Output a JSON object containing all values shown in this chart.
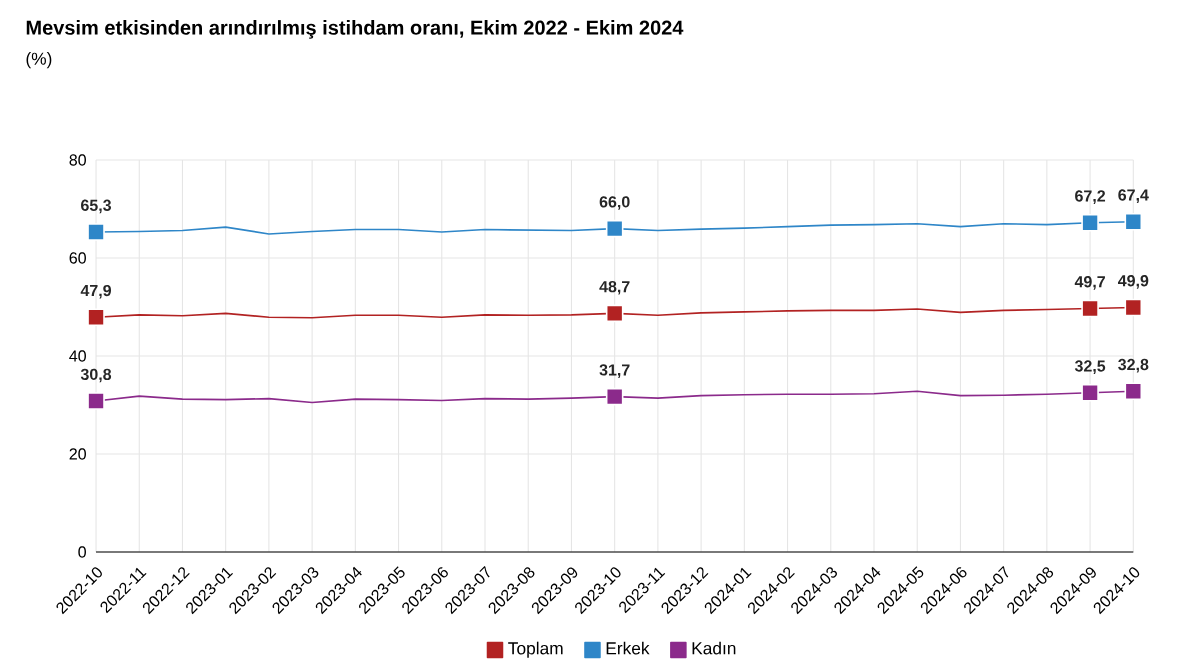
{
  "chart_data": {
    "type": "line",
    "title": "Mevsim etkisinden arındırılmış istihdam oranı, Ekim 2022 - Ekim 2024",
    "ylabel": "(%)",
    "categories": [
      "2022-10",
      "2022-11",
      "2022-12",
      "2023-01",
      "2023-02",
      "2023-03",
      "2023-04",
      "2023-05",
      "2023-06",
      "2023-07",
      "2023-08",
      "2023-09",
      "2023-10",
      "2023-11",
      "2023-12",
      "2024-01",
      "2024-02",
      "2024-03",
      "2024-04",
      "2024-05",
      "2024-06",
      "2024-07",
      "2024-08",
      "2024-09",
      "2024-10"
    ],
    "series": [
      {
        "name": "Toplam",
        "color": "#b22222",
        "values": [
          47.9,
          48.4,
          48.2,
          48.7,
          47.9,
          47.8,
          48.3,
          48.3,
          47.9,
          48.4,
          48.3,
          48.4,
          48.7,
          48.3,
          48.8,
          49.0,
          49.2,
          49.3,
          49.3,
          49.6,
          48.9,
          49.3,
          49.5,
          49.7,
          49.9
        ],
        "value_labels": [
          "47,9",
          null,
          null,
          null,
          null,
          null,
          null,
          null,
          null,
          null,
          null,
          null,
          "48,7",
          null,
          null,
          null,
          null,
          null,
          null,
          null,
          null,
          null,
          null,
          "49,7",
          "49,9"
        ]
      },
      {
        "name": "Erkek",
        "color": "#2e86c8",
        "values": [
          65.3,
          65.4,
          65.6,
          66.3,
          64.9,
          65.4,
          65.8,
          65.8,
          65.3,
          65.8,
          65.7,
          65.6,
          66.0,
          65.6,
          65.9,
          66.1,
          66.4,
          66.7,
          66.8,
          67.0,
          66.4,
          67.0,
          66.8,
          67.2,
          67.4
        ],
        "value_labels": [
          "65,3",
          null,
          null,
          null,
          null,
          null,
          null,
          null,
          null,
          null,
          null,
          null,
          "66,0",
          null,
          null,
          null,
          null,
          null,
          null,
          null,
          null,
          null,
          null,
          "67,2",
          "67,4"
        ]
      },
      {
        "name": "Kadın",
        "color": "#8b2a8b",
        "values": [
          30.8,
          31.8,
          31.2,
          31.1,
          31.3,
          30.5,
          31.2,
          31.1,
          30.9,
          31.3,
          31.2,
          31.4,
          31.7,
          31.4,
          31.9,
          32.1,
          32.2,
          32.2,
          32.3,
          32.8,
          31.9,
          32.0,
          32.2,
          32.5,
          32.8
        ],
        "value_labels": [
          "30,8",
          null,
          null,
          null,
          null,
          null,
          null,
          null,
          null,
          null,
          null,
          null,
          "31,7",
          null,
          null,
          null,
          null,
          null,
          null,
          null,
          null,
          null,
          null,
          "32,5",
          "32,8"
        ]
      }
    ],
    "ylim": [
      0,
      80
    ],
    "yticks": [
      0,
      20,
      40,
      60,
      80
    ],
    "grid": true,
    "legend": "bottom",
    "line_style": "solid"
  }
}
